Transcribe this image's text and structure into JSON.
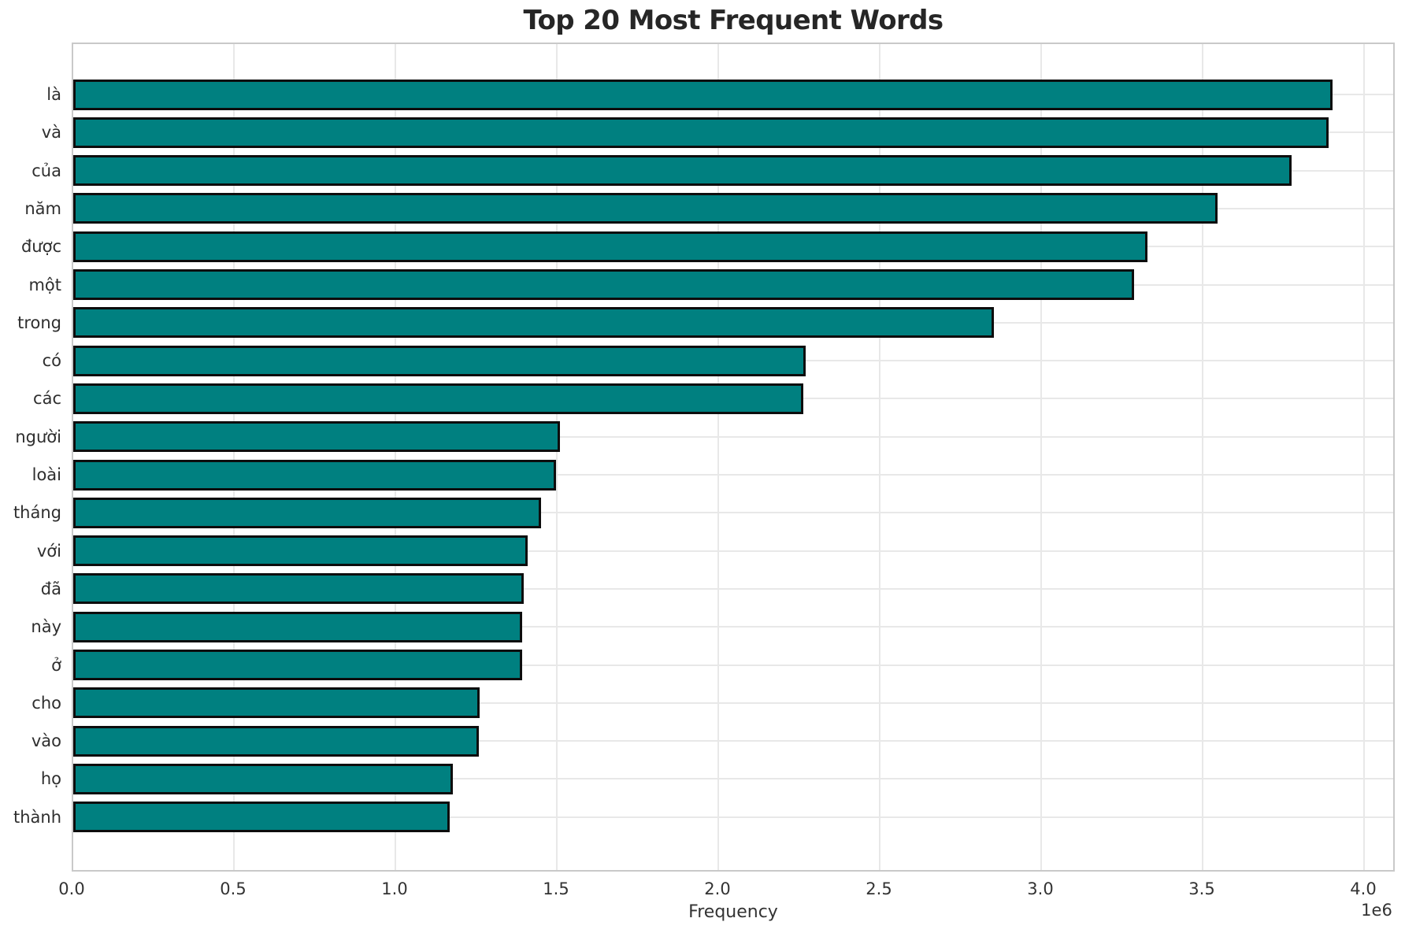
{
  "chart_data": {
    "type": "bar",
    "orientation": "horizontal",
    "title": "Top 20 Most Frequent Words",
    "xlabel": "Frequency",
    "ylabel": "",
    "categories": [
      "là",
      "và",
      "của",
      "năm",
      "được",
      "một",
      "trong",
      "có",
      "các",
      "người",
      "loài",
      "tháng",
      "với",
      "đã",
      "này",
      "ở",
      "cho",
      "vào",
      "họ",
      "thành"
    ],
    "values": [
      3900000,
      3888000,
      3772000,
      3543000,
      3327000,
      3285000,
      2850000,
      2268000,
      2261000,
      1507000,
      1496000,
      1449000,
      1408000,
      1394000,
      1391000,
      1390000,
      1258000,
      1256000,
      1175000,
      1167000
    ],
    "x_ticks": [
      0,
      500000,
      1000000,
      1500000,
      2000000,
      2500000,
      3000000,
      3500000,
      4000000
    ],
    "x_tick_labels": [
      "0.0",
      "0.5",
      "1.0",
      "1.5",
      "2.0",
      "2.5",
      "3.0",
      "3.5",
      "4.0"
    ],
    "x_offset_label": "1e6",
    "xlim": [
      0,
      4100000
    ],
    "grid": true,
    "legend": false,
    "bar_color": "#008080",
    "bar_edge_color": "#0d0d0d",
    "grid_color": "#e8e8e8"
  }
}
